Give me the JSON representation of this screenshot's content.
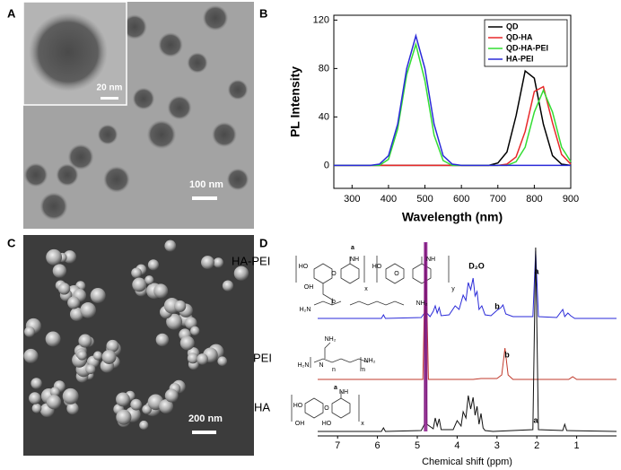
{
  "panels": {
    "a": {
      "label": "A",
      "scale_bar": "100 nm",
      "inset_scale_bar": "20 nm"
    },
    "c": {
      "label": "C",
      "scale_bar": "200 nm"
    }
  },
  "chart_data": [
    {
      "panel_label": "B",
      "type": "line",
      "x_label": "Wavelength (nm)",
      "y_label": "PL Intensity",
      "x": [
        250,
        275,
        300,
        325,
        350,
        375,
        400,
        425,
        450,
        475,
        500,
        525,
        550,
        575,
        600,
        625,
        650,
        675,
        700,
        725,
        750,
        775,
        800,
        825,
        850,
        875,
        900
      ],
      "xlim": [
        250,
        900
      ],
      "xticks": [
        300,
        400,
        500,
        600,
        700,
        800,
        900
      ],
      "ylim": [
        -19,
        124
      ],
      "yticks": [
        0,
        40,
        80,
        120
      ],
      "legend": "upper right",
      "series": [
        {
          "name": "QD",
          "color": "#000000",
          "values": [
            0,
            0,
            0,
            0,
            0,
            0,
            0,
            0,
            0,
            0,
            0,
            0,
            0,
            0,
            0,
            0,
            0,
            0,
            2,
            11,
            41,
            78,
            72,
            34,
            8,
            1,
            0
          ]
        },
        {
          "name": "QD-HA",
          "color": "#e8292a",
          "values": [
            0,
            0,
            0,
            0,
            0,
            0,
            0,
            0,
            0,
            0,
            0,
            0,
            0,
            0,
            0,
            0,
            0,
            0,
            0,
            1,
            7,
            28,
            61,
            65,
            35,
            9,
            1
          ]
        },
        {
          "name": "QD-HA-PEI",
          "color": "#33dd33",
          "values": [
            0,
            0,
            0,
            0,
            0,
            0,
            5,
            30,
            75,
            100,
            70,
            25,
            4,
            0,
            0,
            0,
            0,
            0,
            0,
            0,
            3,
            15,
            44,
            62,
            44,
            15,
            3
          ]
        },
        {
          "name": "HA-PEI",
          "color": "#2a2ad8",
          "values": [
            0,
            0,
            0,
            0,
            0,
            1,
            8,
            34,
            80,
            107,
            80,
            34,
            8,
            1,
            0,
            0,
            0,
            0,
            0,
            0,
            0,
            0,
            0,
            0,
            0,
            0,
            0
          ]
        }
      ]
    },
    {
      "panel_label": "D",
      "type": "spectrum",
      "x_label": "Chemical shift (ppm)",
      "xlim": [
        7.5,
        0
      ],
      "xticks": [
        7,
        6,
        5,
        4,
        3,
        2,
        1
      ],
      "annotations": [
        "D₂O",
        "a",
        "b",
        "b",
        "a"
      ],
      "series": [
        {
          "name": "HA-PEI",
          "color": "#2a2ad8",
          "x": [
            7.5,
            5.9,
            5.85,
            5.8,
            4.9,
            4.82,
            4.79,
            4.76,
            4.68,
            4.6,
            4.55,
            4.5,
            4.45,
            4.4,
            4.2,
            4.05,
            3.95,
            3.85,
            3.78,
            3.72,
            3.66,
            3.6,
            3.55,
            3.5,
            3.45,
            3.38,
            3.3,
            3.15,
            3.0,
            2.9,
            2.85,
            2.78,
            2.6,
            2.1,
            2.03,
            1.96,
            1.5,
            1.35,
            1.3,
            1.22,
            1.15,
            1.05,
            0
          ],
          "values": [
            0,
            0,
            4,
            0,
            1,
            6,
            85,
            6,
            2,
            8,
            14,
            6,
            12,
            3,
            4,
            14,
            10,
            26,
            20,
            40,
            32,
            45,
            25,
            30,
            10,
            14,
            4,
            3,
            9,
            12,
            15,
            5,
            2,
            2,
            75,
            2,
            1,
            10,
            2,
            6,
            3,
            0,
            0
          ]
        },
        {
          "name": "PEI",
          "color": "#c0392b",
          "x": [
            7.5,
            4.86,
            4.79,
            4.72,
            3.6,
            3.4,
            3.0,
            2.88,
            2.8,
            2.72,
            2.6,
            1.2,
            1.1,
            1.0,
            0
          ],
          "values": [
            0,
            0,
            150,
            0,
            0,
            1,
            1,
            5,
            35,
            5,
            0,
            0,
            3,
            0,
            0
          ]
        },
        {
          "name": "HA",
          "color": "#111111",
          "x": [
            7.5,
            5.9,
            5.85,
            5.8,
            4.9,
            4.82,
            4.79,
            4.76,
            4.6,
            4.55,
            4.5,
            4.45,
            4.4,
            4.1,
            4.0,
            3.9,
            3.85,
            3.78,
            3.72,
            3.66,
            3.6,
            3.55,
            3.5,
            3.45,
            3.4,
            3.35,
            3.3,
            3.1,
            2.1,
            2.03,
            1.96,
            1.35,
            1.3,
            1.25,
            0
          ],
          "values": [
            0,
            0,
            4,
            0,
            1,
            8,
            210,
            8,
            3,
            15,
            6,
            14,
            2,
            2,
            12,
            6,
            22,
            15,
            40,
            25,
            38,
            18,
            28,
            8,
            20,
            4,
            1,
            0,
            2,
            205,
            2,
            1,
            8,
            1,
            0
          ]
        }
      ]
    }
  ],
  "structures": {
    "ha_pei": [
      "a",
      "NH",
      "O",
      "HO",
      "OH",
      "O",
      "HO",
      "NH",
      "b",
      "H₂N",
      "NH₂",
      "x",
      "y"
    ],
    "pei": [
      "NH₂",
      "H₂N",
      "N",
      "n",
      "m",
      "NH₂"
    ],
    "ha": [
      "a",
      "NH",
      "HO",
      "OH",
      "O",
      "HO",
      "x"
    ]
  }
}
